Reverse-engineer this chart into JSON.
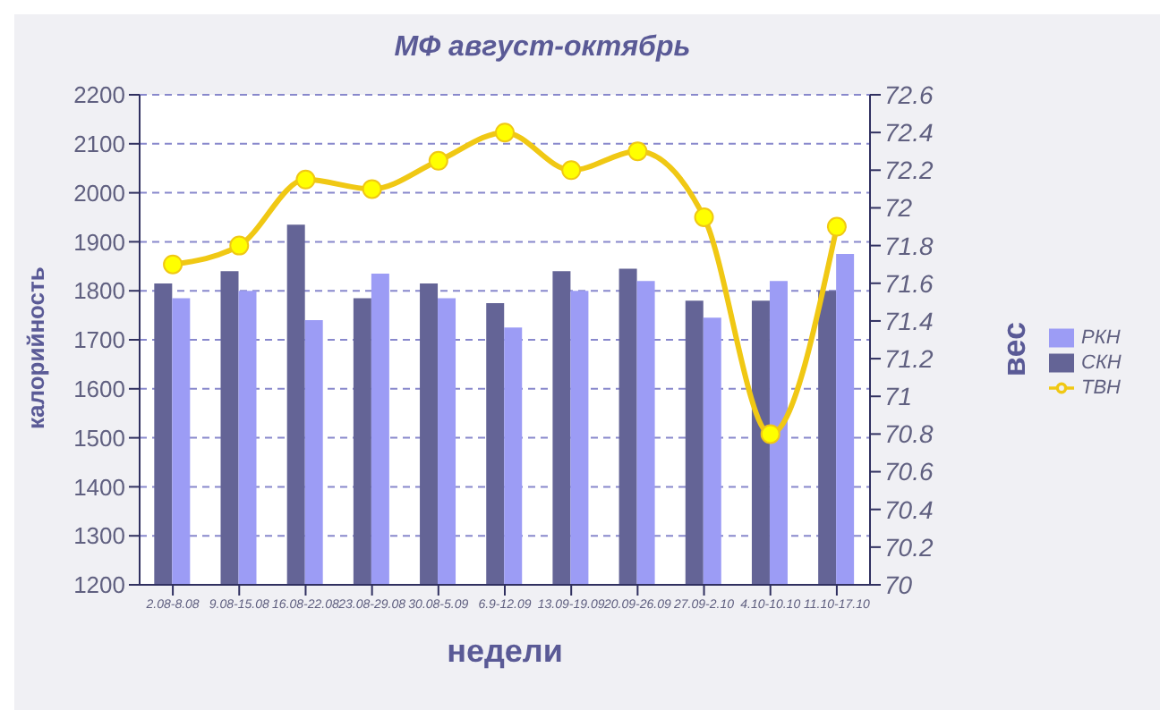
{
  "chart_data": {
    "type": "bar",
    "title": "МФ август-октябрь",
    "xlabel": "недели",
    "ylabel": "калорийность",
    "y2label": "вес",
    "categories": [
      "2.08-8.08",
      "9.08-15.08",
      "16.08-22.08",
      "23.08-29.08",
      "30.08-5.09",
      "6.9-12.09",
      "13.09-19.09",
      "20.09-26.09",
      "27.09-2.10",
      "4.10-10.10",
      "11.10-17.10"
    ],
    "series": [
      {
        "name": "СКН",
        "color": "#646496",
        "values": [
          1815,
          1840,
          1935,
          1785,
          1815,
          1775,
          1840,
          1845,
          1780,
          1780,
          1800
        ]
      },
      {
        "name": "РКН",
        "color": "#9c9cf5",
        "values": [
          1785,
          1800,
          1740,
          1835,
          1785,
          1725,
          1800,
          1820,
          1745,
          1820,
          1875
        ]
      },
      {
        "name": "ТВН",
        "type": "line",
        "axis": "y2",
        "color": "#f0c814",
        "values": [
          71.7,
          71.8,
          72.15,
          72.1,
          72.25,
          72.4,
          72.2,
          72.3,
          71.95,
          70.8,
          71.9
        ]
      }
    ],
    "ylim": [
      1200,
      2200
    ],
    "yticks": [
      1200,
      1300,
      1400,
      1500,
      1600,
      1700,
      1800,
      1900,
      2000,
      2100,
      2200
    ],
    "y2lim": [
      70,
      72.6
    ],
    "y2ticks": [
      70,
      70.2,
      70.4,
      70.6,
      70.8,
      71,
      71.2,
      71.4,
      71.6,
      71.8,
      72,
      72.2,
      72.4,
      72.6
    ],
    "grid": "y",
    "legend": "right",
    "marker": "circle"
  }
}
